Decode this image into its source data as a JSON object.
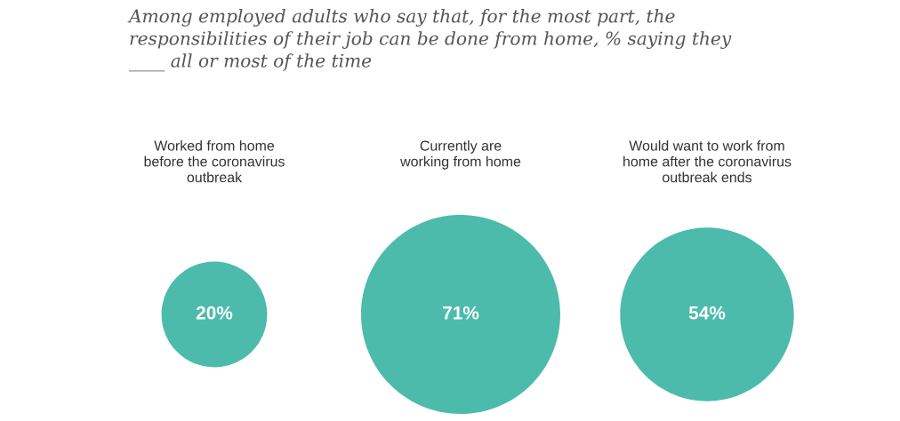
{
  "chart_data": {
    "type": "other",
    "title": "Among employed adults who say that, for the most part, the\nresponsibilities of their job can be done from home, % saying they\n____ all or most of the time",
    "categories": [
      "Worked from home\nbefore the coronavirus\noutbreak",
      "Currently are\nworking from home",
      "Would want to work from\nhome after the coronavirus\noutbreak ends"
    ],
    "values": [
      20,
      71,
      54
    ],
    "color": "#4dbbab",
    "value_labels": [
      "20%",
      "71%",
      "54%"
    ]
  }
}
